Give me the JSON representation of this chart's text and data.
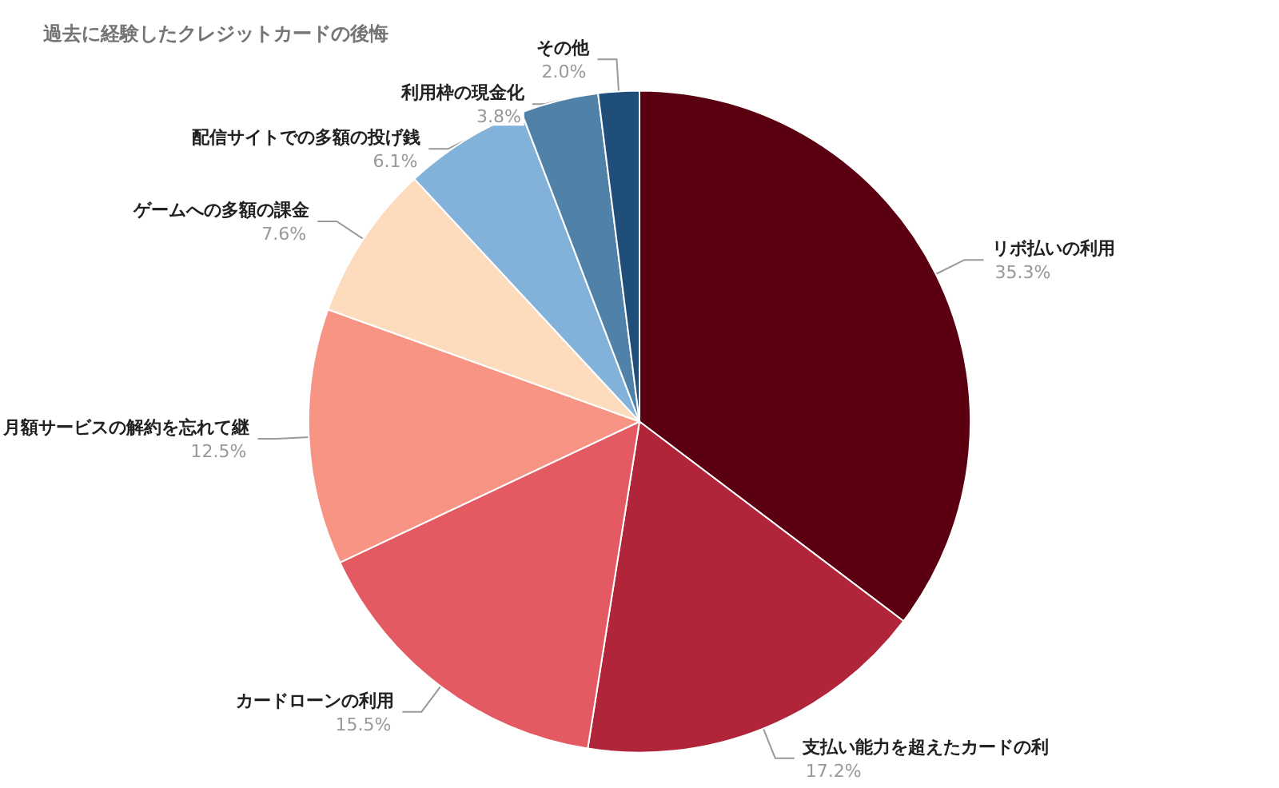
{
  "chart_data": {
    "type": "pie",
    "title": "過去に経験したクレジットカードの後悔",
    "categories": [
      "リボ払いの利用",
      "支払い能力を超えたカードの利",
      "カードローンの利用",
      "月額サービスの解約を忘れて継",
      "ゲームへの多額の課金",
      "配信サイトでの多額の投げ銭",
      "利用枠の現金化",
      "その他"
    ],
    "values": [
      35.3,
      17.2,
      15.5,
      12.5,
      7.6,
      6.1,
      3.8,
      2.0
    ],
    "value_labels": [
      "35.3%",
      "17.2%",
      "15.5%",
      "12.5%",
      "7.6%",
      "6.1%",
      "3.8%",
      "2.0%"
    ],
    "colors": [
      "#5a0011",
      "#b0253a",
      "#e45a62",
      "#f79483",
      "#fddcbe",
      "#82b2da",
      "#5081a8",
      "#1f4e79"
    ],
    "legend": false
  }
}
